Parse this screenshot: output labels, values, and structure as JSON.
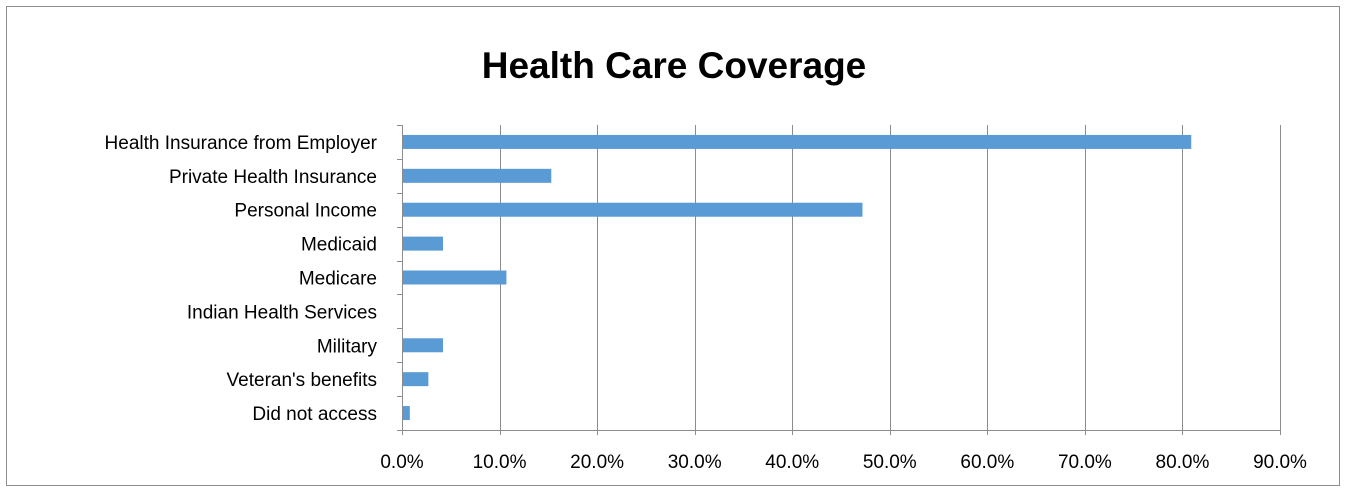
{
  "chart_data": {
    "type": "bar",
    "orientation": "horizontal",
    "title": "Health Care Coverage",
    "xlabel": "",
    "ylabel": "",
    "categories": [
      "Health Insurance from Employer",
      "Private Health Insurance",
      "Personal Income",
      "Medicaid",
      "Medicare",
      "Indian Health Services",
      "Military",
      "Veteran's benefits",
      "Did not access"
    ],
    "values": [
      80.8,
      15.2,
      47.1,
      4.1,
      10.6,
      0.0,
      4.1,
      2.6,
      0.7
    ],
    "xlim": [
      0,
      90
    ],
    "xticks": [
      0,
      10,
      20,
      30,
      40,
      50,
      60,
      70,
      80,
      90
    ],
    "xtick_labels": [
      "0.0%",
      "10.0%",
      "20.0%",
      "30.0%",
      "40.0%",
      "50.0%",
      "60.0%",
      "70.0%",
      "80.0%",
      "90.0%"
    ],
    "grid": "vertical",
    "legend": "none",
    "bar_color": "#5b9bd5"
  }
}
